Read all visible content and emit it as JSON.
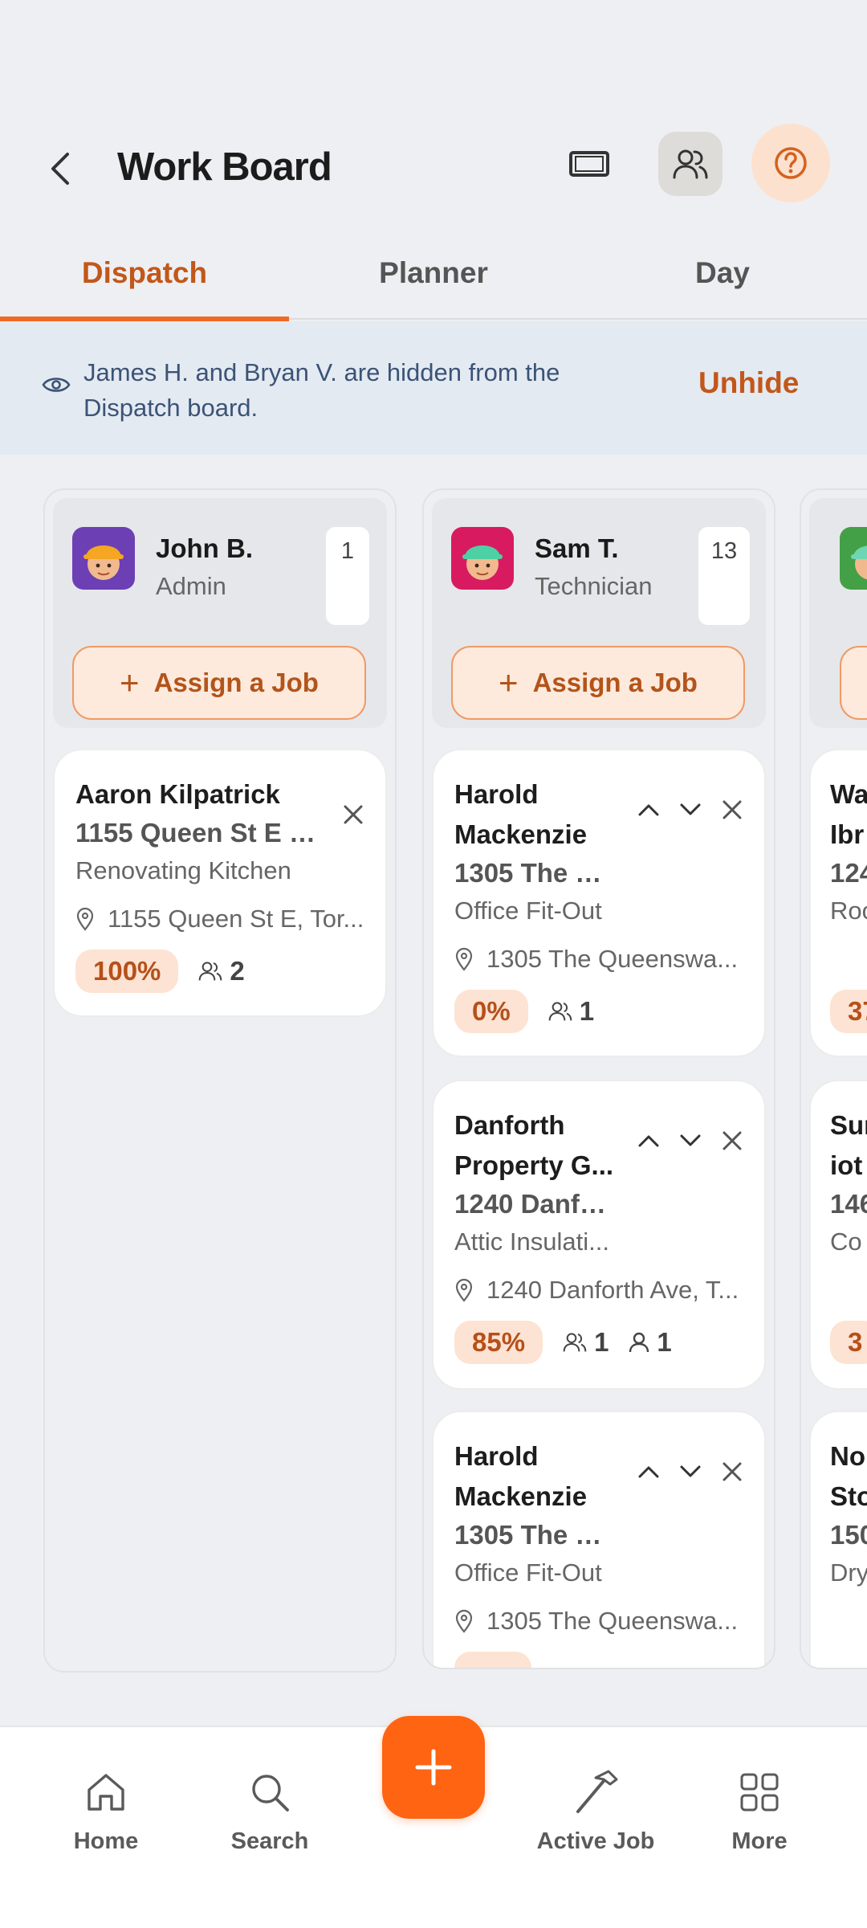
{
  "header": {
    "title": "Work Board"
  },
  "tabs": [
    {
      "label": "Dispatch",
      "active": true
    },
    {
      "label": "Planner",
      "active": false
    },
    {
      "label": "Day",
      "active": false
    }
  ],
  "banner": {
    "text": "James H. and Bryan V. are hidden from the Dispatch board.",
    "action": "Unhide"
  },
  "columns": [
    {
      "name": "John B.",
      "role": "Admin",
      "count": "1",
      "assign_label": "Assign a Job",
      "cards": [
        {
          "customer": "Aaron Kilpatrick",
          "address": "1155 Queen St E (J...",
          "job": "Renovating Kitchen",
          "location": "1155 Queen St E, Tor...",
          "percent": "100%",
          "crew": "2"
        }
      ]
    },
    {
      "name": "Sam T.",
      "role": "Technician",
      "count": "13",
      "assign_label": "Assign a Job",
      "cards": [
        {
          "customer": "Harold Mackenzie",
          "address": "1305 The Q...",
          "job": "Office Fit-Out",
          "location": "1305 The Queenswa...",
          "percent": "0%",
          "crew": "1"
        },
        {
          "customer": "Danforth Property G...",
          "address": "1240 Danfo...",
          "job": "Attic Insulati...",
          "location": "1240 Danforth Ave, T...",
          "percent": "85%",
          "crew": "1",
          "person": "1"
        },
        {
          "customer": "Harold Mackenzie",
          "address": "1305 The Q...",
          "job": "Office Fit-Out",
          "location": "1305 The Queenswa..."
        }
      ]
    },
    {
      "cards": [
        {
          "customer_l1": "Wa",
          "customer_l2": "Ibr",
          "address": "124",
          "job": "Roo",
          "percent": "37"
        },
        {
          "customer_l1": "Sur",
          "customer_l2": "iot",
          "address": "146",
          "job": "Co",
          "percent": "3"
        },
        {
          "customer_l1": "No",
          "customer_l2": "Sto",
          "address": "150",
          "job": "Dry"
        }
      ]
    }
  ],
  "bottom_nav": [
    {
      "label": "Home",
      "icon": "home-icon"
    },
    {
      "label": "Search",
      "icon": "search-icon"
    },
    {
      "label": "Active Job",
      "icon": "hammer-icon"
    },
    {
      "label": "More",
      "icon": "grid-icon"
    }
  ],
  "colors": {
    "accent": "#ff6412",
    "accent_text": "#c2571a",
    "banner_bg": "#e4eaf2"
  }
}
